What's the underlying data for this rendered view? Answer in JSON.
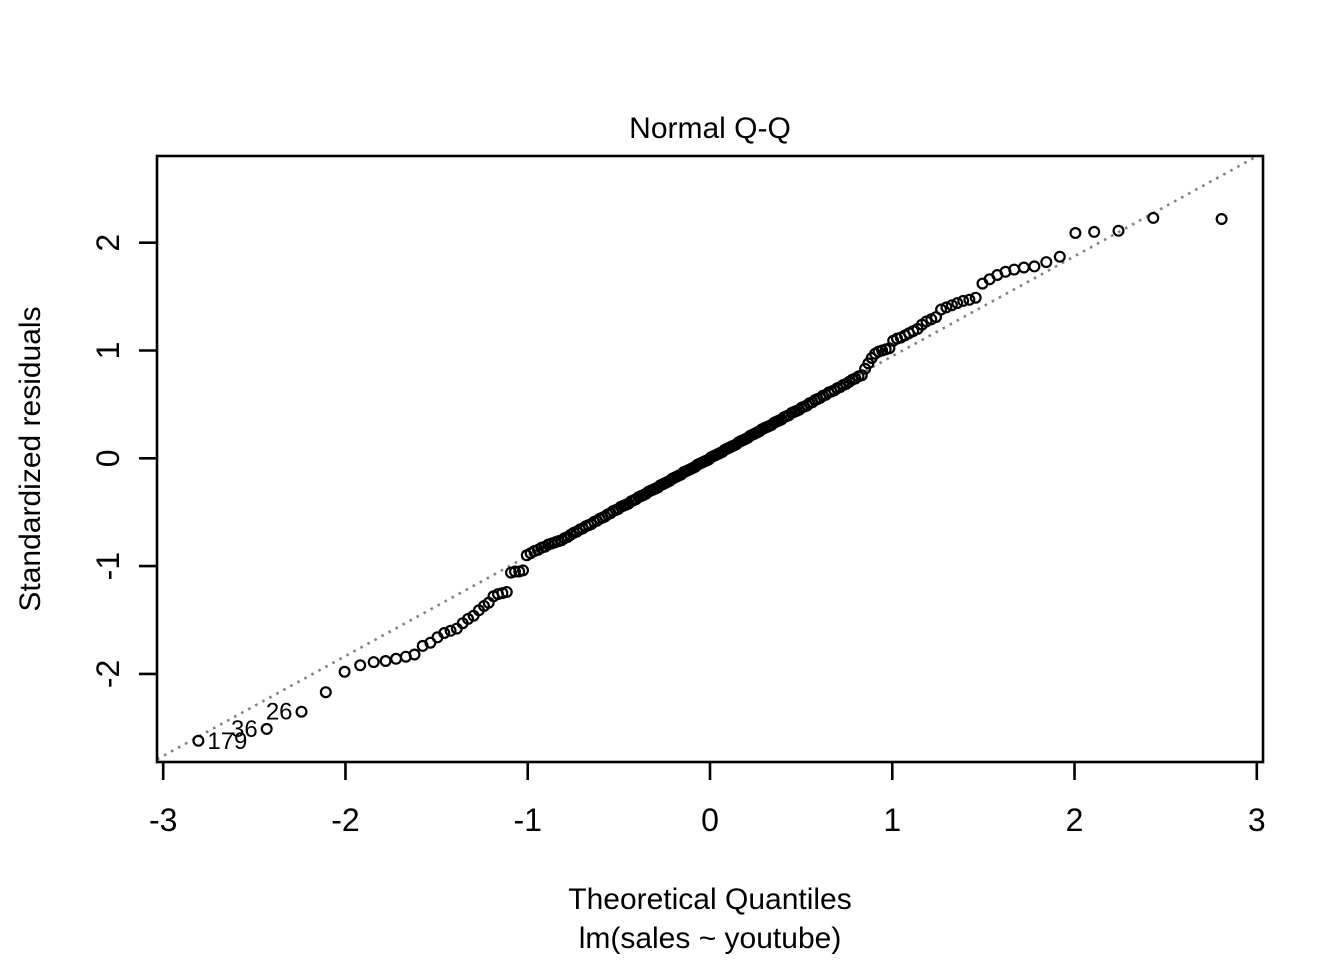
{
  "title": "Normal Q-Q",
  "xlabel": "Theoretical Quantiles",
  "xsublabel": "lm(sales ~ youtube)",
  "ylabel": "Standardized residuals",
  "colors": {
    "background": "#ffffff",
    "points": "#000000",
    "axis": "#000000",
    "ref_line": "#828282"
  },
  "axes": {
    "x_ticks": [
      -3,
      -2,
      -1,
      0,
      1,
      2,
      3
    ],
    "y_ticks": [
      -2,
      -1,
      0,
      1,
      2
    ],
    "xlim": [
      -3.034,
      3.034
    ],
    "ylim": [
      -2.817,
      2.804
    ]
  },
  "ref_line": {
    "slope": 0.927,
    "intercept": 0.02,
    "style": "dotted"
  },
  "labeled_points": [
    {
      "label": "179",
      "x": -2.807,
      "y": -2.62,
      "side": "right"
    },
    {
      "label": "36",
      "x": -2.432,
      "y": -2.51,
      "side": "left"
    },
    {
      "label": "26",
      "x": -2.241,
      "y": -2.35,
      "side": "left"
    }
  ],
  "chart_data": {
    "type": "scatter",
    "title": "Normal Q-Q",
    "xlabel": "Theoretical Quantiles",
    "ylabel": "Standardized residuals",
    "subtitle": "lm(sales ~ youtube)",
    "xlim": [
      -3.034,
      3.034
    ],
    "ylim": [
      -2.817,
      2.804
    ],
    "grid": false,
    "marker": "open-circle",
    "n_points": 200,
    "x": [
      -2.807,
      -2.432,
      -2.241,
      -2.108,
      -2.005,
      -1.919,
      -1.845,
      -1.78,
      -1.722,
      -1.669,
      -1.621,
      -1.576,
      -1.534,
      -1.495,
      -1.458,
      -1.423,
      -1.389,
      -1.357,
      -1.327,
      -1.297,
      -1.268,
      -1.24,
      -1.214,
      -1.188,
      -1.163,
      -1.139,
      -1.115,
      -1.092,
      -1.07,
      -1.047,
      -1.026,
      -1.005,
      -0.984,
      -0.964,
      -0.944,
      -0.925,
      -0.906,
      -0.887,
      -0.869,
      -0.851,
      -0.833,
      -0.815,
      -0.798,
      -0.781,
      -0.764,
      -0.747,
      -0.731,
      -0.714,
      -0.698,
      -0.682,
      -0.666,
      -0.651,
      -0.636,
      -0.62,
      -0.605,
      -0.59,
      -0.576,
      -0.561,
      -0.546,
      -0.532,
      -0.517,
      -0.503,
      -0.489,
      -0.475,
      -0.461,
      -0.447,
      -0.433,
      -0.419,
      -0.406,
      -0.392,
      -0.378,
      -0.365,
      -0.352,
      -0.338,
      -0.325,
      -0.312,
      -0.298,
      -0.285,
      -0.272,
      -0.259,
      -0.247,
      -0.234,
      -0.221,
      -0.208,
      -0.196,
      -0.183,
      -0.17,
      -0.158,
      -0.145,
      -0.132,
      -0.12,
      -0.107,
      -0.095,
      -0.082,
      -0.069,
      -0.057,
      -0.044,
      -0.031,
      -0.019,
      -0.006,
      0.006,
      0.019,
      0.031,
      0.044,
      0.057,
      0.069,
      0.082,
      0.095,
      0.107,
      0.12,
      0.132,
      0.145,
      0.158,
      0.17,
      0.183,
      0.196,
      0.208,
      0.221,
      0.234,
      0.247,
      0.259,
      0.272,
      0.285,
      0.298,
      0.312,
      0.325,
      0.338,
      0.352,
      0.365,
      0.378,
      0.392,
      0.406,
      0.419,
      0.433,
      0.447,
      0.461,
      0.475,
      0.489,
      0.503,
      0.517,
      0.532,
      0.546,
      0.561,
      0.576,
      0.59,
      0.605,
      0.62,
      0.636,
      0.651,
      0.666,
      0.682,
      0.698,
      0.714,
      0.731,
      0.747,
      0.764,
      0.781,
      0.798,
      0.815,
      0.833,
      0.851,
      0.869,
      0.887,
      0.906,
      0.925,
      0.944,
      0.964,
      0.984,
      1.005,
      1.026,
      1.047,
      1.07,
      1.092,
      1.115,
      1.139,
      1.163,
      1.188,
      1.214,
      1.24,
      1.268,
      1.297,
      1.327,
      1.357,
      1.389,
      1.423,
      1.458,
      1.495,
      1.534,
      1.576,
      1.621,
      1.669,
      1.722,
      1.78,
      1.845,
      1.919,
      2.005,
      2.108,
      2.241,
      2.432,
      2.807
    ],
    "y": [
      -2.62,
      -2.51,
      -2.35,
      -2.17,
      -1.98,
      -1.92,
      -1.89,
      -1.88,
      -1.86,
      -1.84,
      -1.82,
      -1.74,
      -1.71,
      -1.66,
      -1.62,
      -1.6,
      -1.58,
      -1.53,
      -1.49,
      -1.46,
      -1.41,
      -1.37,
      -1.34,
      -1.28,
      -1.26,
      -1.25,
      -1.24,
      -1.06,
      -1.05,
      -1.05,
      -1.04,
      -0.9,
      -0.88,
      -0.86,
      -0.85,
      -0.83,
      -0.82,
      -0.8,
      -0.79,
      -0.78,
      -0.77,
      -0.76,
      -0.74,
      -0.73,
      -0.71,
      -0.69,
      -0.68,
      -0.66,
      -0.65,
      -0.63,
      -0.62,
      -0.61,
      -0.59,
      -0.58,
      -0.56,
      -0.55,
      -0.54,
      -0.52,
      -0.51,
      -0.49,
      -0.48,
      -0.47,
      -0.45,
      -0.44,
      -0.43,
      -0.42,
      -0.4,
      -0.39,
      -0.38,
      -0.36,
      -0.35,
      -0.34,
      -0.33,
      -0.31,
      -0.3,
      -0.29,
      -0.28,
      -0.27,
      -0.25,
      -0.24,
      -0.23,
      -0.22,
      -0.21,
      -0.19,
      -0.18,
      -0.17,
      -0.16,
      -0.15,
      -0.13,
      -0.12,
      -0.11,
      -0.1,
      -0.09,
      -0.08,
      -0.06,
      -0.05,
      -0.04,
      -0.03,
      -0.02,
      -0.01,
      0.01,
      0.02,
      0.03,
      0.04,
      0.05,
      0.06,
      0.08,
      0.09,
      0.1,
      0.11,
      0.12,
      0.13,
      0.15,
      0.16,
      0.17,
      0.18,
      0.19,
      0.21,
      0.22,
      0.23,
      0.24,
      0.25,
      0.27,
      0.28,
      0.29,
      0.3,
      0.31,
      0.33,
      0.34,
      0.35,
      0.36,
      0.38,
      0.39,
      0.4,
      0.42,
      0.43,
      0.44,
      0.45,
      0.47,
      0.48,
      0.49,
      0.51,
      0.52,
      0.54,
      0.55,
      0.56,
      0.58,
      0.59,
      0.61,
      0.62,
      0.63,
      0.65,
      0.66,
      0.68,
      0.69,
      0.71,
      0.73,
      0.74,
      0.76,
      0.77,
      0.83,
      0.88,
      0.93,
      0.97,
      0.99,
      1.0,
      1.01,
      1.02,
      1.09,
      1.11,
      1.12,
      1.14,
      1.16,
      1.18,
      1.2,
      1.24,
      1.27,
      1.29,
      1.31,
      1.38,
      1.4,
      1.42,
      1.44,
      1.46,
      1.47,
      1.49,
      1.62,
      1.66,
      1.7,
      1.73,
      1.75,
      1.77,
      1.78,
      1.82,
      1.87,
      2.09,
      2.1,
      2.11,
      2.23,
      2.22
    ]
  }
}
